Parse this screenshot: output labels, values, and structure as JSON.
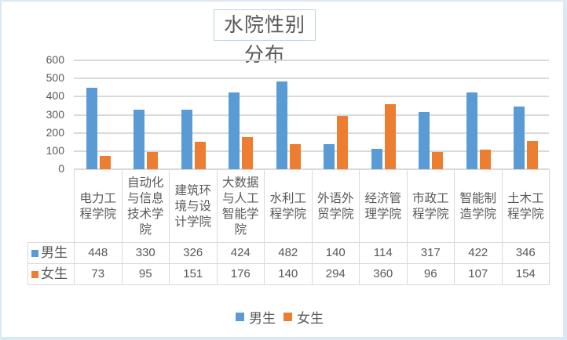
{
  "chart_data": {
    "type": "bar",
    "title": "水院性别分布",
    "xlabel": "",
    "ylabel": "",
    "ylim": [
      0,
      600
    ],
    "yticks": [
      0,
      100,
      200,
      300,
      400,
      500,
      600
    ],
    "grid": true,
    "legend_position": "bottom",
    "data_table": true,
    "categories": [
      "电力工程学院",
      "自动化与信息技术学院",
      "建筑环境与设计学院",
      "大数据与人工智能学院",
      "水利工程学院",
      "外语外贸学院",
      "经济管理学院",
      "市政工程学院",
      "智能制造学院",
      "土木工程学院"
    ],
    "series": [
      {
        "name": "男生",
        "color": "#5b9bd5",
        "values": [
          448,
          330,
          326,
          424,
          482,
          140,
          114,
          317,
          422,
          346
        ]
      },
      {
        "name": "女生",
        "color": "#ed7d31",
        "values": [
          73,
          95,
          151,
          176,
          140,
          294,
          360,
          96,
          107,
          154
        ]
      }
    ]
  },
  "title": "水院性别分布",
  "category_labels_wrapped": [
    [
      "电力工",
      "程学院"
    ],
    [
      "自动化",
      "与信息",
      "技术学",
      "院"
    ],
    [
      "建筑环",
      "境与设",
      "计学院"
    ],
    [
      "大数据",
      "与人工",
      "智能学",
      "院"
    ],
    [
      "水利工",
      "程学院"
    ],
    [
      "外语外",
      "贸学院"
    ],
    [
      "经济管",
      "理学院"
    ],
    [
      "市政工",
      "程学院"
    ],
    [
      "智能制",
      "造学院"
    ],
    [
      "土木工",
      "程学院"
    ]
  ],
  "legend": [
    {
      "label": "男生",
      "color": "#5b9bd5"
    },
    {
      "label": "女生",
      "color": "#ed7d31"
    }
  ]
}
